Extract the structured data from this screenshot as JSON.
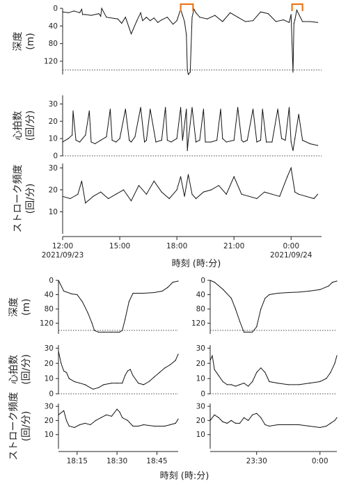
{
  "chart_data": [
    {
      "id": "overview",
      "type": "line",
      "x_unit": "hours from 12:00 on 2021/09/23",
      "xlim": [
        0,
        13.6
      ],
      "x_ticks": [
        {
          "value": 0,
          "label": "12:00",
          "sublabel": "2021/09/23"
        },
        {
          "value": 3,
          "label": "15:00",
          "sublabel": ""
        },
        {
          "value": 6,
          "label": "18:00",
          "sublabel": ""
        },
        {
          "value": 9,
          "label": "21:00",
          "sublabel": ""
        },
        {
          "value": 12,
          "label": "0:00",
          "sublabel": "2021/09/24"
        }
      ],
      "xlabel": "時刻 (時:分)",
      "highlight_brackets": [
        [
          6.2,
          6.85
        ],
        [
          12.05,
          12.6
        ]
      ],
      "panels": [
        {
          "ylabel": "深度 (m)",
          "ylim": [
            0,
            150
          ],
          "inverted": true,
          "y_ticks": [
            0,
            40,
            80,
            120
          ],
          "reference_line": 140,
          "series": [
            {
              "x": [
                0,
                0.3,
                0.6,
                0.9,
                1.0,
                1.05,
                1.2,
                1.5,
                1.9,
                2.0,
                2.05,
                2.3,
                2.9,
                3.1,
                3.3,
                3.6,
                3.9,
                4.1,
                4.2,
                4.4,
                4.6,
                4.8,
                5.0,
                5.2,
                5.5,
                5.8,
                6.0,
                6.2,
                6.3,
                6.4,
                6.5,
                6.55,
                6.6,
                6.7,
                6.8,
                6.9,
                7.0,
                7.2,
                7.6,
                8.0,
                8.4,
                8.8,
                9.2,
                9.6,
                10.0,
                10.4,
                10.8,
                11.2,
                11.6,
                11.9,
                12.0,
                12.05,
                12.1,
                12.15,
                12.2,
                12.3,
                12.6,
                13.0,
                13.4
              ],
              "y": [
                8,
                10,
                6,
                10,
                2,
                14,
                14,
                16,
                12,
                18,
                0,
                20,
                24,
                34,
                20,
                58,
                28,
                10,
                28,
                20,
                28,
                22,
                32,
                26,
                20,
                36,
                28,
                2,
                16,
                30,
                60,
                140,
                150,
                145,
                20,
                2,
                10,
                20,
                24,
                16,
                30,
                10,
                20,
                30,
                28,
                8,
                12,
                30,
                26,
                32,
                14,
                80,
                145,
                34,
                26,
                4,
                30,
                30,
                32
              ]
            }
          ]
        },
        {
          "ylabel": "心拍数 (回/分)",
          "ylim": [
            0,
            35
          ],
          "y_ticks": [
            0,
            10,
            20,
            30
          ],
          "reference_line": 0,
          "series": [
            {
              "x": [
                0,
                0.3,
                0.5,
                0.55,
                0.7,
                0.9,
                1.2,
                1.4,
                1.5,
                1.7,
                2.0,
                2.3,
                2.5,
                2.6,
                2.8,
                3.0,
                3.3,
                3.5,
                3.6,
                3.8,
                4.1,
                4.3,
                4.4,
                4.6,
                4.9,
                5.2,
                5.4,
                5.5,
                5.7,
                6.0,
                6.2,
                6.3,
                6.5,
                6.55,
                6.6,
                6.8,
                7.0,
                7.2,
                7.4,
                7.5,
                7.8,
                8.1,
                8.3,
                8.4,
                8.6,
                9.0,
                9.2,
                9.4,
                9.5,
                9.7,
                10.0,
                10.2,
                10.4,
                10.5,
                10.7,
                11.0,
                11.3,
                11.5,
                11.7,
                11.9,
                12.0,
                12.1,
                12.2,
                12.4,
                12.6,
                13.0,
                13.4
              ],
              "y": [
                8,
                10,
                12,
                26,
                9,
                8,
                12,
                26,
                8,
                7,
                9,
                11,
                27,
                9,
                8,
                10,
                27,
                9,
                8,
                11,
                28,
                8,
                9,
                27,
                8,
                9,
                28,
                9,
                8,
                10,
                28,
                9,
                27,
                3,
                9,
                28,
                8,
                9,
                27,
                8,
                8,
                9,
                27,
                10,
                8,
                9,
                28,
                9,
                8,
                9,
                27,
                8,
                9,
                27,
                8,
                8,
                27,
                10,
                9,
                28,
                8,
                3,
                10,
                24,
                9,
                7,
                6
              ]
            }
          ]
        },
        {
          "ylabel": "ストローク頻度 (回/分)",
          "ylim": [
            0,
            32
          ],
          "y_ticks": [
            10,
            20,
            30
          ],
          "series": [
            {
              "x": [
                0,
                0.4,
                0.8,
                1.0,
                1.2,
                1.6,
                2.0,
                2.4,
                2.8,
                3.2,
                3.6,
                4.0,
                4.4,
                4.8,
                5.2,
                5.6,
                6.0,
                6.2,
                6.4,
                6.6,
                6.8,
                7.0,
                7.4,
                7.8,
                8.2,
                8.6,
                9.0,
                9.4,
                9.8,
                10.2,
                10.6,
                11.0,
                11.4,
                11.8,
                12.0,
                12.2,
                12.4,
                12.8,
                13.2,
                13.4
              ],
              "y": [
                17,
                16,
                18,
                24,
                14,
                17,
                19,
                16,
                18,
                20,
                15,
                22,
                18,
                24,
                19,
                16,
                20,
                26,
                17,
                27,
                18,
                16,
                19,
                20,
                22,
                18,
                26,
                18,
                17,
                16,
                19,
                18,
                17,
                26,
                30,
                19,
                18,
                17,
                16,
                18
              ]
            }
          ]
        }
      ]
    },
    {
      "id": "zoom-dive-1",
      "type": "line",
      "x_unit": "minutes after 18:00",
      "xlim": [
        8,
        53
      ],
      "x_ticks": [
        {
          "value": 15,
          "label": "18:15"
        },
        {
          "value": 30,
          "label": "18:30"
        },
        {
          "value": 45,
          "label": "18:45"
        }
      ],
      "panels": [
        {
          "ylabel": "深度 (m)",
          "ylim": [
            0,
            150
          ],
          "inverted": true,
          "y_ticks": [
            0,
            40,
            80,
            120
          ],
          "reference_line": 140,
          "series": [
            {
              "x": [
                8,
                10,
                13,
                15,
                17,
                19,
                20.5,
                21.5,
                23,
                25,
                28,
                30,
                31,
                32,
                33,
                34.5,
                36,
                40,
                44,
                47,
                49,
                51,
                53
              ],
              "y": [
                0,
                30,
                38,
                40,
                60,
                90,
                118,
                140,
                145,
                145,
                145,
                145,
                145,
                140,
                110,
                60,
                36,
                36,
                34,
                30,
                20,
                5,
                2
              ]
            }
          ]
        },
        {
          "ylabel": "心拍数 (回/分)",
          "ylim": [
            0,
            32
          ],
          "y_ticks": [
            0,
            10,
            20,
            30
          ],
          "reference_line": 0,
          "series": [
            {
              "x": [
                8,
                9,
                10,
                11,
                12,
                14,
                16,
                18,
                20,
                21,
                23,
                25,
                28,
                30,
                32,
                33,
                34,
                35,
                36,
                38,
                40,
                42,
                44,
                46,
                48,
                50,
                52,
                53
              ],
              "y": [
                28,
                20,
                15,
                14,
                10,
                8,
                7,
                6,
                4,
                3,
                4,
                6,
                7,
                7,
                7,
                12,
                15,
                16,
                12,
                7,
                6,
                8,
                11,
                14,
                17,
                19,
                22,
                26
              ]
            }
          ]
        },
        {
          "ylabel": "ストローク頻度 (回/分)",
          "ylim": [
            0,
            32
          ],
          "y_ticks": [
            10,
            20,
            30
          ],
          "series": [
            {
              "x": [
                8,
                10,
                11,
                12,
                14,
                16,
                18,
                20,
                22,
                24,
                26,
                28,
                30,
                31,
                32,
                34,
                36,
                38,
                40,
                44,
                48,
                50,
                52,
                53
              ],
              "y": [
                24,
                27,
                20,
                16,
                15,
                17,
                18,
                17,
                20,
                22,
                24,
                23,
                28,
                26,
                22,
                20,
                16,
                16,
                17,
                16,
                16,
                17,
                18,
                21
              ]
            }
          ]
        }
      ]
    },
    {
      "id": "zoom-dive-2",
      "type": "line",
      "x_unit": "minutes after 23:00",
      "xlim": [
        8,
        68
      ],
      "x_ticks": [
        {
          "value": 30,
          "label": "23:30"
        },
        {
          "value": 60,
          "label": "0:00"
        }
      ],
      "panels": [
        {
          "ylabel": "深度 (m)",
          "ylim": [
            0,
            150
          ],
          "inverted": true,
          "y_ticks": [
            0,
            40,
            80,
            120
          ],
          "reference_line": 140,
          "series": [
            {
              "x": [
                8,
                10,
                14,
                18,
                20,
                22,
                24,
                26,
                28,
                30,
                32,
                34,
                36,
                40,
                45,
                50,
                55,
                60,
                64,
                66,
                68
              ],
              "y": [
                0,
                5,
                25,
                50,
                80,
                115,
                145,
                145,
                145,
                130,
                80,
                50,
                40,
                36,
                34,
                33,
                30,
                26,
                16,
                5,
                2
              ]
            }
          ]
        },
        {
          "ylabel": "心拍数 (回/分)",
          "ylim": [
            0,
            32
          ],
          "y_ticks": [
            0,
            10,
            20,
            30
          ],
          "reference_line": 0,
          "series": [
            {
              "x": [
                8,
                9,
                10,
                12,
                14,
                16,
                18,
                20,
                22,
                24,
                26,
                28,
                30,
                32,
                34,
                36,
                40,
                45,
                50,
                55,
                60,
                63,
                65,
                67,
                68
              ],
              "y": [
                22,
                25,
                16,
                12,
                8,
                6,
                6,
                5,
                6,
                7,
                5,
                8,
                14,
                17,
                14,
                8,
                7,
                6,
                6,
                7,
                8,
                10,
                14,
                20,
                25
              ]
            }
          ]
        },
        {
          "ylabel": "ストローク頻度 (回/分)",
          "ylim": [
            0,
            32
          ],
          "y_ticks": [
            10,
            20,
            30
          ],
          "series": [
            {
              "x": [
                8,
                10,
                12,
                14,
                16,
                18,
                20,
                22,
                24,
                26,
                28,
                30,
                32,
                34,
                36,
                40,
                45,
                50,
                55,
                60,
                63,
                65,
                67,
                68
              ],
              "y": [
                20,
                24,
                22,
                19,
                18,
                20,
                18,
                18,
                22,
                20,
                24,
                25,
                22,
                17,
                16,
                17,
                17,
                17,
                16,
                15,
                16,
                18,
                20,
                22
              ]
            }
          ]
        }
      ]
    }
  ],
  "shared": {
    "bottom_xlabel": "時刻 (時:分)"
  }
}
